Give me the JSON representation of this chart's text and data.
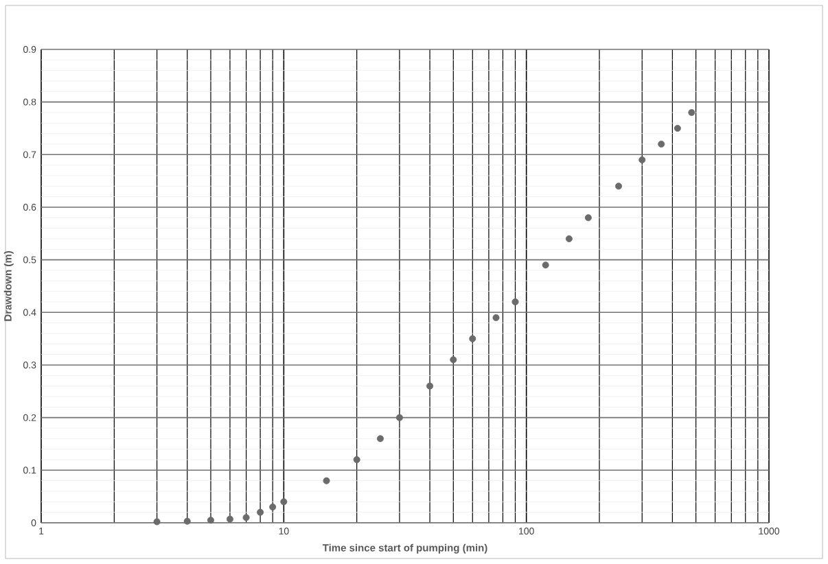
{
  "chart_data": {
    "type": "scatter",
    "xlabel": "Time since start of pumping (min)",
    "ylabel": "Drawdown (m)",
    "x": [
      3,
      4,
      5,
      6,
      7,
      8,
      9,
      10,
      15,
      20,
      25,
      30,
      40,
      50,
      60,
      75,
      90,
      120,
      150,
      180,
      240,
      300,
      360,
      420,
      480
    ],
    "values": [
      0.002,
      0.003,
      0.005,
      0.007,
      0.01,
      0.02,
      0.03,
      0.04,
      0.08,
      0.12,
      0.16,
      0.2,
      0.26,
      0.31,
      0.35,
      0.39,
      0.42,
      0.49,
      0.54,
      0.58,
      0.64,
      0.69,
      0.72,
      0.75,
      0.78
    ],
    "color": "#6b6b6b",
    "marker": "circle",
    "log": "x",
    "grid": true,
    "xlim": [
      1,
      1000
    ],
    "xticks": [
      1,
      10,
      100,
      1000
    ],
    "ylim": [
      0,
      0.9
    ],
    "yticks": [
      0,
      0.1,
      0.2,
      0.3,
      0.4,
      0.5,
      0.6,
      0.7,
      0.8,
      0.9
    ]
  }
}
